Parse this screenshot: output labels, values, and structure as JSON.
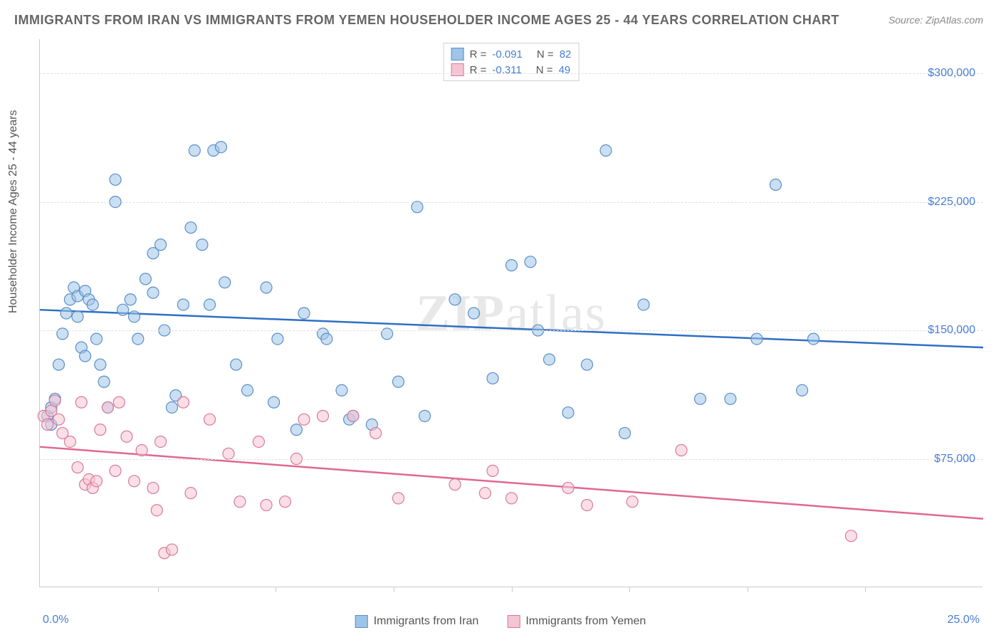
{
  "title": "IMMIGRANTS FROM IRAN VS IMMIGRANTS FROM YEMEN HOUSEHOLDER INCOME AGES 25 - 44 YEARS CORRELATION CHART",
  "source": "Source: ZipAtlas.com",
  "watermark": {
    "bold": "ZIP",
    "rest": "atlas"
  },
  "y_label": "Householder Income Ages 25 - 44 years",
  "chart": {
    "type": "scatter",
    "xlim": [
      0,
      25
    ],
    "ylim": [
      0,
      320000
    ],
    "x_ticks": [
      0,
      25
    ],
    "x_tick_labels": [
      "0.0%",
      "25.0%"
    ],
    "x_minor_ticks": [
      3.125,
      6.25,
      9.375,
      12.5,
      15.625,
      18.75,
      21.875
    ],
    "y_gridlines": [
      75000,
      150000,
      225000,
      300000
    ],
    "y_tick_labels": [
      "$75,000",
      "$150,000",
      "$225,000",
      "$300,000"
    ],
    "grid_color": "#e0e0e0",
    "background_color": "#ffffff",
    "series": [
      {
        "name": "Immigrants from Iran",
        "R": "-0.091",
        "N": "82",
        "fill": "#9ec4e8",
        "stroke": "#5a8fc9",
        "line_color": "#2f6fc5",
        "line_width": 2.5,
        "trend": {
          "y_at_xmin": 162000,
          "y_at_xmax": 140000
        },
        "points": [
          [
            0.2,
            100000
          ],
          [
            0.3,
            95000
          ],
          [
            0.3,
            105000
          ],
          [
            0.4,
            110000
          ],
          [
            0.5,
            130000
          ],
          [
            0.6,
            148000
          ],
          [
            0.7,
            160000
          ],
          [
            0.8,
            168000
          ],
          [
            0.9,
            175000
          ],
          [
            1.0,
            170000
          ],
          [
            1.0,
            158000
          ],
          [
            1.1,
            140000
          ],
          [
            1.2,
            135000
          ],
          [
            1.2,
            173000
          ],
          [
            1.3,
            168000
          ],
          [
            1.4,
            165000
          ],
          [
            1.5,
            145000
          ],
          [
            1.6,
            130000
          ],
          [
            1.7,
            120000
          ],
          [
            1.8,
            105000
          ],
          [
            2.0,
            225000
          ],
          [
            2.0,
            238000
          ],
          [
            2.2,
            162000
          ],
          [
            2.4,
            168000
          ],
          [
            2.5,
            158000
          ],
          [
            2.6,
            145000
          ],
          [
            2.8,
            180000
          ],
          [
            3.0,
            195000
          ],
          [
            3.0,
            172000
          ],
          [
            3.2,
            200000
          ],
          [
            3.3,
            150000
          ],
          [
            3.5,
            105000
          ],
          [
            3.6,
            112000
          ],
          [
            3.8,
            165000
          ],
          [
            4.0,
            210000
          ],
          [
            4.1,
            255000
          ],
          [
            4.3,
            200000
          ],
          [
            4.5,
            165000
          ],
          [
            4.6,
            255000
          ],
          [
            4.8,
            257000
          ],
          [
            4.9,
            178000
          ],
          [
            5.2,
            130000
          ],
          [
            5.5,
            115000
          ],
          [
            6.0,
            175000
          ],
          [
            6.2,
            108000
          ],
          [
            6.3,
            145000
          ],
          [
            6.8,
            92000
          ],
          [
            7.0,
            160000
          ],
          [
            7.5,
            148000
          ],
          [
            7.6,
            145000
          ],
          [
            8.0,
            115000
          ],
          [
            8.2,
            98000
          ],
          [
            8.3,
            100000
          ],
          [
            8.8,
            95000
          ],
          [
            9.2,
            148000
          ],
          [
            9.5,
            120000
          ],
          [
            10.0,
            222000
          ],
          [
            10.2,
            100000
          ],
          [
            11.0,
            168000
          ],
          [
            11.5,
            160000
          ],
          [
            12.0,
            122000
          ],
          [
            12.5,
            188000
          ],
          [
            13.0,
            190000
          ],
          [
            13.2,
            150000
          ],
          [
            13.5,
            133000
          ],
          [
            14.0,
            102000
          ],
          [
            14.5,
            130000
          ],
          [
            15.0,
            255000
          ],
          [
            15.5,
            90000
          ],
          [
            16.0,
            165000
          ],
          [
            17.5,
            110000
          ],
          [
            18.3,
            110000
          ],
          [
            19.0,
            145000
          ],
          [
            19.5,
            235000
          ],
          [
            20.2,
            115000
          ],
          [
            20.5,
            145000
          ]
        ]
      },
      {
        "name": "Immigrants from Yemen",
        "R": "-0.311",
        "N": "49",
        "fill": "#f5c4d2",
        "stroke": "#d97a9a",
        "line_color": "#e06890",
        "line_width": 2.5,
        "trend": {
          "y_at_xmin": 82000,
          "y_at_xmax": 40000
        },
        "points": [
          [
            0.1,
            100000
          ],
          [
            0.2,
            95000
          ],
          [
            0.3,
            103000
          ],
          [
            0.4,
            109000
          ],
          [
            0.5,
            98000
          ],
          [
            0.6,
            90000
          ],
          [
            0.8,
            85000
          ],
          [
            1.0,
            70000
          ],
          [
            1.1,
            108000
          ],
          [
            1.2,
            60000
          ],
          [
            1.3,
            63000
          ],
          [
            1.4,
            58000
          ],
          [
            1.5,
            62000
          ],
          [
            1.6,
            92000
          ],
          [
            1.8,
            105000
          ],
          [
            2.0,
            68000
          ],
          [
            2.1,
            108000
          ],
          [
            2.3,
            88000
          ],
          [
            2.5,
            62000
          ],
          [
            2.7,
            80000
          ],
          [
            3.0,
            58000
          ],
          [
            3.1,
            45000
          ],
          [
            3.2,
            85000
          ],
          [
            3.3,
            20000
          ],
          [
            3.5,
            22000
          ],
          [
            3.8,
            108000
          ],
          [
            4.0,
            55000
          ],
          [
            4.5,
            98000
          ],
          [
            5.0,
            78000
          ],
          [
            5.3,
            50000
          ],
          [
            5.8,
            85000
          ],
          [
            6.0,
            48000
          ],
          [
            6.5,
            50000
          ],
          [
            6.8,
            75000
          ],
          [
            7.0,
            98000
          ],
          [
            7.5,
            100000
          ],
          [
            8.3,
            100000
          ],
          [
            8.9,
            90000
          ],
          [
            9.5,
            52000
          ],
          [
            11.0,
            60000
          ],
          [
            11.8,
            55000
          ],
          [
            12.0,
            68000
          ],
          [
            12.5,
            52000
          ],
          [
            14.0,
            58000
          ],
          [
            14.5,
            48000
          ],
          [
            15.7,
            50000
          ],
          [
            17.0,
            80000
          ],
          [
            21.5,
            30000
          ]
        ]
      }
    ]
  },
  "legend_bottom": [
    "Immigrants from Iran",
    "Immigrants from Yemen"
  ],
  "marker_radius": 8,
  "marker_opacity": 0.55
}
